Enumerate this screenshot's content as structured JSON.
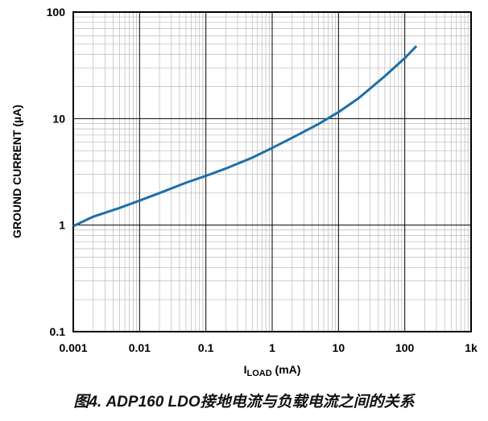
{
  "chart_data": {
    "type": "line",
    "x_scale": "log",
    "y_scale": "log",
    "xlim": [
      0.001,
      1000
    ],
    "ylim": [
      0.1,
      100
    ],
    "grid": true,
    "x_tick_labels": [
      "0.001",
      "0.01",
      "0.1",
      "1",
      "10",
      "100",
      "1k"
    ],
    "y_tick_labels": [
      "0.1",
      "1",
      "10",
      "100"
    ],
    "xlabel": {
      "main": "I",
      "sub": "LOAD",
      "unit": " (mA)"
    },
    "ylabel": "GROUND CURRENT (µA)",
    "line_color": "#1f6fa6",
    "series": [
      {
        "x": [
          0.001,
          0.002,
          0.005,
          0.01,
          0.02,
          0.05,
          0.1,
          0.2,
          0.5,
          1,
          2,
          5,
          10,
          20,
          50,
          100,
          150
        ],
        "y": [
          0.98,
          1.2,
          1.45,
          1.7,
          2.0,
          2.5,
          2.9,
          3.4,
          4.3,
          5.3,
          6.6,
          8.9,
          11.5,
          15.5,
          25,
          37,
          48
        ]
      }
    ]
  },
  "caption": "图4. ADP160 LDO接地电流与负载电流之间的关系"
}
